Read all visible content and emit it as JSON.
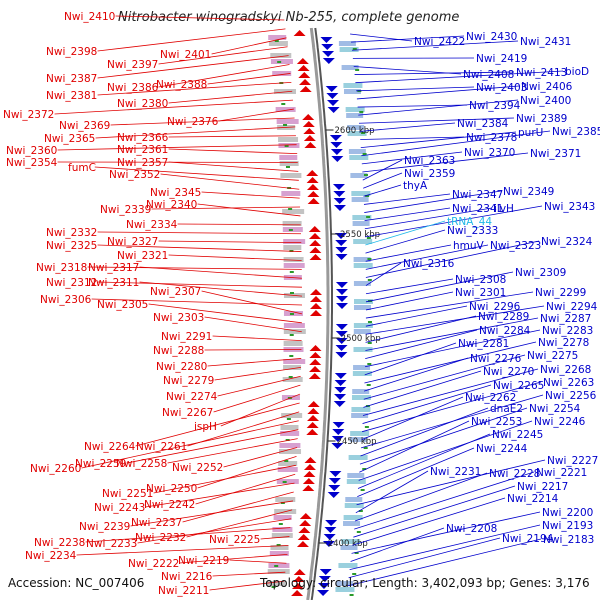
{
  "title": "Nitrobacter winogradskyi Nb-255, complete genome",
  "accession": "Accession: NC_007406",
  "topology": "Topology: circular; Length: 3,402,093 bp; Genes: 3,176",
  "colors": {
    "left_strand": "#e00000",
    "right_strand": "#0000cc",
    "rna": "#20b8e8",
    "backbone": "#888888"
  },
  "kbp_marks": [
    "2600 kbp",
    "2550 kbp",
    "2500 kbp",
    "2450 kbp",
    "2400 kbp"
  ],
  "left_labels": [
    "Nwi_2410",
    "Nwi_2398",
    "Nwi_2401",
    "Nwi_2397",
    "Nwi_2387",
    "Nwi_2386",
    "Nwi_2388",
    "Nwi_2381",
    "Nwi_2380",
    "Nwi_2372",
    "Nwi_2376",
    "Nwi_2369",
    "Nwi_2365",
    "Nwi_2366",
    "Nwi_2360",
    "Nwi_2361",
    "Nwi_2354",
    "Nwi_2357",
    "fumC",
    "Nwi_2352",
    "Nwi_2345",
    "Nwi_2339",
    "Nwi_2340",
    "Nwi_2334",
    "Nwi_2332",
    "Nwi_2327",
    "Nwi_2325",
    "Nwi_2321",
    "Nwi_2318",
    "Nwi_2317",
    "Nwi_2312",
    "Nwi_2311",
    "Nwi_2306",
    "Nwi_2307",
    "Nwi_2305",
    "Nwi_2303",
    "Nwi_2291",
    "Nwi_2288",
    "Nwi_2280",
    "Nwi_2279",
    "Nwi_2274",
    "Nwi_2267",
    "ispH",
    "Nwi_2264",
    "Nwi_2261",
    "Nwi_2260",
    "Nwi_2259",
    "Nwi_2258",
    "Nwi_2252",
    "Nwi_2250",
    "Nwi_2251",
    "Nwi_2242",
    "Nwi_2243",
    "Nwi_2237",
    "Nwi_2239",
    "Nwi_2232",
    "Nwi_2233",
    "Nwi_2238",
    "Nwi_2225",
    "Nwi_2234",
    "Nwi_2222",
    "Nwi_2219",
    "Nwi_2216",
    "Nwi_2211"
  ],
  "right_labels": [
    "Nwi_2422",
    "Nwi_2430",
    "Nwi_2431",
    "Nwi_2419",
    "Nwi_2408",
    "Nwi_2413",
    "bioD",
    "Nwi_2403",
    "Nwi_2406",
    "Nwi_2394",
    "Nwi_2400",
    "Nwi_2389",
    "Nwi_2384",
    "Nwi_2378",
    "purU",
    "Nwi_2385",
    "Nwi_2370",
    "Nwi_2371",
    "Nwi_2363",
    "Nwi_2359",
    "thyA",
    "Nwi_2347",
    "Nwi_2349",
    "Nwi_2341",
    "ilvH",
    "Nwi_2343",
    "tRNA_44",
    "Nwi_2333",
    "hmuV",
    "Nwi_2323",
    "Nwi_2324",
    "Nwi_2316",
    "Nwi_2308",
    "Nwi_2309",
    "Nwi_2301",
    "Nwi_2299",
    "Nwi_2296",
    "Nwi_2294",
    "Nwi_2289",
    "Nwi_2287",
    "Nwi_2284",
    "Nwi_2283",
    "Nwi_2281",
    "Nwi_2278",
    "Nwi_2276",
    "Nwi_2275",
    "Nwi_2270",
    "Nwi_2268",
    "Nwi_2265",
    "Nwi_2263",
    "Nwi_2262",
    "Nwi_2256",
    "dnaE2",
    "Nwi_2254",
    "Nwi_2253",
    "Nwi_2246",
    "Nwi_2245",
    "Nwi_2244",
    "Nwi_2227",
    "Nwi_2231",
    "Nwi_2228",
    "Nwi_2221",
    "Nwi_2217",
    "Nwi_2214",
    "Nwi_2200",
    "Nwi_2208",
    "Nwi_2193",
    "Nwi_2194",
    "Nwi_2183"
  ]
}
